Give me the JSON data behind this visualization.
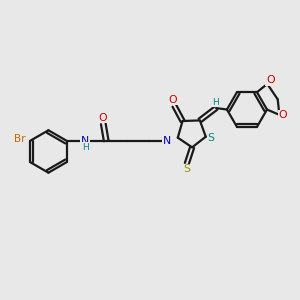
{
  "bg_color": "#e8e8e8",
  "bond_color": "#1a1a1a",
  "bw": 1.6,
  "atom_colors": {
    "Br": "#cc6600",
    "O": "#cc0000",
    "N": "#0000cc",
    "S_yellow": "#999900",
    "S_teal": "#008888",
    "H": "#008888",
    "C": "#1a1a1a"
  }
}
